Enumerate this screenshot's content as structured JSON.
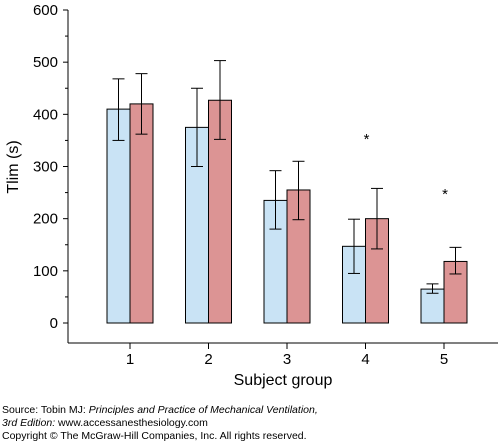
{
  "chart_data": {
    "type": "bar",
    "xlabel": "Subject group",
    "ylabel": "Tlim (s)",
    "ylim": [
      0,
      600
    ],
    "yticks": [
      0,
      100,
      200,
      300,
      400,
      500,
      600
    ],
    "categories": [
      "1",
      "2",
      "3",
      "4",
      "5"
    ],
    "series": [
      {
        "color": "#c9e3f5",
        "values": [
          410,
          375,
          235,
          147,
          65
        ],
        "err_low": [
          350,
          300,
          180,
          95,
          57
        ],
        "err_high": [
          468,
          450,
          292,
          199,
          75
        ]
      },
      {
        "color": "#dc9494",
        "values": [
          420,
          427,
          255,
          200,
          118
        ],
        "err_low": [
          362,
          352,
          198,
          142,
          94
        ],
        "err_high": [
          478,
          503,
          310,
          258,
          145
        ]
      }
    ],
    "annotations": [
      {
        "category": "4",
        "text": "*",
        "y": 358
      },
      {
        "category": "5",
        "text": "*",
        "y": 253
      }
    ],
    "grid": false,
    "legend": "none"
  },
  "source": {
    "line1_prefix": "Source: Tobin MJ: ",
    "line1_title": "Principles and Practice of Mechanical Ventilation,",
    "line2_edition": "3rd Edition:",
    "line2_rest": " www.accessanesthesiology.com",
    "line3": "Copyright © The McGraw-Hill Companies, Inc. All rights reserved."
  }
}
